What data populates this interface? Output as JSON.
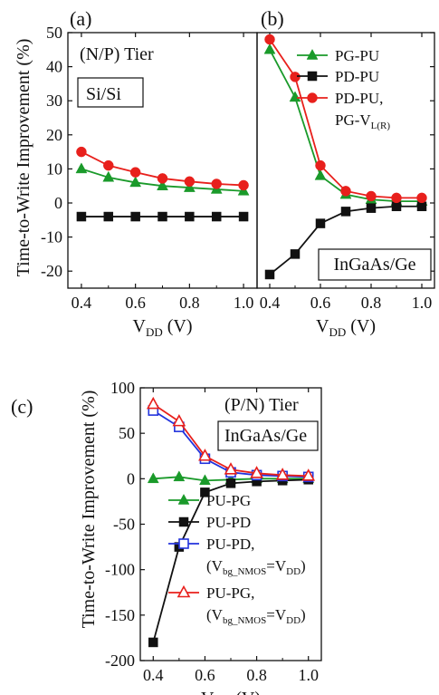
{
  "figure": {
    "panel_labels": [
      "(a)",
      "(b)",
      "(c)"
    ],
    "ylabel": "Time-to-Write Improvement (%)"
  },
  "chart_data": [
    {
      "type": "line",
      "panel": "(a)",
      "x": [
        0.4,
        0.5,
        0.6,
        0.7,
        0.8,
        0.9,
        1.0
      ],
      "xticks": [
        "0.4",
        "0.6",
        "0.8",
        "1.0"
      ],
      "yticks": [
        "50",
        "40",
        "30",
        "20",
        "10",
        "0",
        "-10",
        "-20"
      ],
      "xlim": [
        0.35,
        1.05
      ],
      "ylim": [
        -25,
        50
      ],
      "ylabel": "Time-to-Write Improvement (%)",
      "xlabel": {
        "main": "V",
        "sub": "DD",
        "unit": " (V)"
      },
      "annotations": [
        "(N/P) Tier",
        "Si/Si"
      ],
      "series": [
        {
          "name": "PG-PU",
          "color": "#1a9a2a",
          "marker": "triangle",
          "values": [
            10,
            7.5,
            6,
            5,
            4.5,
            4,
            3.5
          ]
        },
        {
          "name": "PD-PU",
          "color": "#111111",
          "marker": "square",
          "values": [
            -4,
            -4,
            -4,
            -4,
            -4,
            -4,
            -4
          ]
        },
        {
          "name": "PD-PU, PG-V_L(R)",
          "color": "#e8201c",
          "marker": "circle",
          "values": [
            15,
            11,
            9,
            7.2,
            6.3,
            5.6,
            5.2
          ]
        }
      ]
    },
    {
      "type": "line",
      "panel": "(b)",
      "x": [
        0.4,
        0.5,
        0.6,
        0.7,
        0.8,
        0.9,
        1.0
      ],
      "xticks": [
        "0.4",
        "0.6",
        "0.8",
        "1.0"
      ],
      "xlim": [
        0.35,
        1.05
      ],
      "ylim": [
        -25,
        50
      ],
      "xlabel": {
        "main": "V",
        "sub": "DD",
        "unit": " (V)"
      },
      "annotations": [
        "InGaAs/Ge"
      ],
      "legend": [
        {
          "text": "PG-PU"
        },
        {
          "text": "PD-PU"
        },
        {
          "text": "PD-PU,",
          "text2": "PG-V",
          "sub": "L(R)"
        }
      ],
      "series": [
        {
          "name": "PG-PU",
          "color": "#1a9a2a",
          "marker": "triangle",
          "values": [
            45,
            31,
            8,
            2.5,
            1,
            0.5,
            0.5
          ]
        },
        {
          "name": "PD-PU",
          "color": "#111111",
          "marker": "square",
          "values": [
            -21,
            -15,
            -6,
            -2.5,
            -1.5,
            -1,
            -1
          ]
        },
        {
          "name": "PD-PU, PG-V_L(R)",
          "color": "#e8201c",
          "marker": "circle",
          "values": [
            48,
            37,
            11,
            3.5,
            2,
            1.5,
            1.5
          ]
        }
      ]
    },
    {
      "type": "line",
      "panel": "(c)",
      "x": [
        0.4,
        0.5,
        0.6,
        0.7,
        0.8,
        0.9,
        1.0
      ],
      "xticks": [
        "0.4",
        "0.6",
        "0.8",
        "1.0"
      ],
      "yticks": [
        "100",
        "50",
        "0",
        "-50",
        "-100",
        "-150",
        "-200"
      ],
      "xlim": [
        0.35,
        1.05
      ],
      "ylim": [
        -200,
        100
      ],
      "ylabel": "Time-to-Write Improvement (%)",
      "xlabel": {
        "main": "V",
        "sub": "DD",
        "unit": " (V)"
      },
      "annotations": [
        "(P/N) Tier",
        "InGaAs/Ge"
      ],
      "legend": [
        {
          "text": "PU-PG"
        },
        {
          "text": "PU-PD"
        },
        {
          "text": "PU-PD,",
          "text2": "(V",
          "sub": "bg_NMOS",
          "text3": "=V",
          "sub2": "DD",
          "text4": ")"
        },
        {
          "text": "PU-PG,",
          "text2": "(V",
          "sub": "bg_NMOS",
          "text3": "=V",
          "sub2": "DD",
          "text4": ")"
        }
      ],
      "series": [
        {
          "name": "PU-PG",
          "color": "#1a9a2a",
          "marker": "triangle",
          "values": [
            0,
            2,
            -2,
            -1,
            0,
            0,
            0
          ]
        },
        {
          "name": "PU-PD",
          "color": "#111111",
          "marker": "square",
          "values": [
            -180,
            -75,
            -15,
            -5,
            -3,
            -2,
            -1
          ]
        },
        {
          "name": "PU-PD, (V_bg_NMOS=V_DD)",
          "color": "#2233dd",
          "marker": "open-square",
          "values": [
            75,
            57,
            22,
            7,
            4,
            3,
            2
          ]
        },
        {
          "name": "PU-PG, (V_bg_NMOS=V_DD)",
          "color": "#e8201c",
          "marker": "open-triangle",
          "values": [
            82,
            63,
            25,
            10,
            6,
            4,
            3
          ]
        }
      ]
    }
  ]
}
